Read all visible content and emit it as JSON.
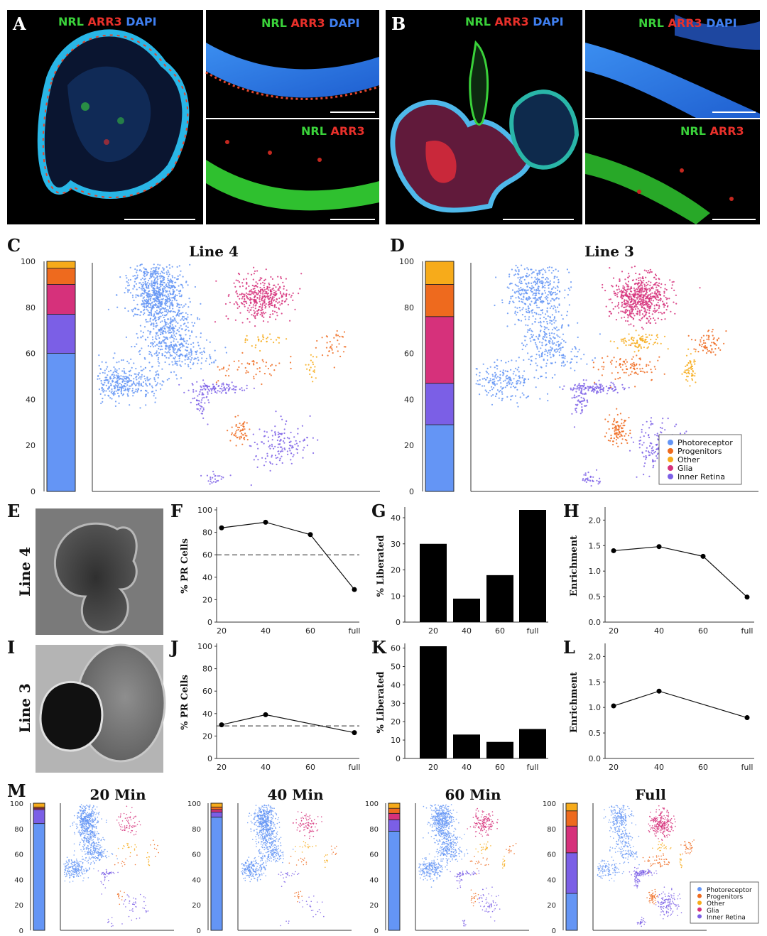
{
  "micrographs": {
    "A": {
      "letter": "A",
      "label_main": [
        "NRL",
        "ARR3",
        "DAPI"
      ],
      "label_inset_top": [
        "NRL",
        "ARR3",
        "DAPI"
      ],
      "label_inset_bottom": [
        "NRL",
        "ARR3"
      ]
    },
    "B": {
      "letter": "B",
      "label_main": [
        "NRL",
        "ARR3",
        "DAPI"
      ],
      "label_inset_top": [
        "NRL",
        "ARR3",
        "DAPI"
      ],
      "label_inset_bottom": [
        "NRL",
        "ARR3"
      ]
    },
    "label_colors": {
      "NRL": "#3ad23a",
      "ARR3": "#e8302a",
      "DAPI": "#3f7ff0"
    }
  },
  "brightfield": {
    "E": {
      "letter": "E",
      "line": "Line 4"
    },
    "I": {
      "letter": "I",
      "line": "Line 3"
    }
  },
  "legend_items": [
    "Photoreceptor",
    "Progenitors",
    "Other",
    "Glia",
    "Inner Retina"
  ],
  "category_colors": {
    "Photoreceptor": "#6495f5",
    "Progenitors": "#ee6a1e",
    "Other": "#f7ab1a",
    "Glia": "#d6317b",
    "Inner Retina": "#7b5fe6"
  },
  "chart_data": [
    {
      "panel": "C",
      "type": "bar",
      "title": "Line 4",
      "stacked": true,
      "ylim": [
        0,
        100
      ],
      "yticks": [
        0,
        20,
        40,
        60,
        80,
        100
      ],
      "series": [
        {
          "name": "Photoreceptor",
          "values": [
            60
          ]
        },
        {
          "name": "Inner Retina",
          "values": [
            17
          ]
        },
        {
          "name": "Glia",
          "values": [
            13
          ]
        },
        {
          "name": "Progenitors",
          "values": [
            7
          ]
        },
        {
          "name": "Other",
          "values": [
            3
          ]
        }
      ]
    },
    {
      "panel": "D",
      "type": "bar",
      "title": "Line 3",
      "stacked": true,
      "ylim": [
        0,
        100
      ],
      "yticks": [
        0,
        20,
        40,
        60,
        80,
        100
      ],
      "series": [
        {
          "name": "Photoreceptor",
          "values": [
            29
          ]
        },
        {
          "name": "Inner Retina",
          "values": [
            18
          ]
        },
        {
          "name": "Glia",
          "values": [
            29
          ]
        },
        {
          "name": "Progenitors",
          "values": [
            14
          ]
        },
        {
          "name": "Other",
          "values": [
            10
          ]
        }
      ]
    },
    {
      "panel": "F",
      "type": "line",
      "categories": [
        "20",
        "40",
        "60",
        "full"
      ],
      "values": [
        84,
        89,
        78,
        29
      ],
      "reference_line": 60,
      "ylabel": "% PR Cells",
      "ylim": [
        0,
        100
      ],
      "yticks": [
        0,
        20,
        40,
        60,
        80,
        100
      ]
    },
    {
      "panel": "G",
      "type": "bar",
      "categories": [
        "20",
        "40",
        "60",
        "full"
      ],
      "values": [
        30,
        9,
        18,
        43
      ],
      "ylabel": "% Liberated",
      "ylim": [
        0,
        43
      ],
      "yticks": [
        0,
        10,
        20,
        30,
        40
      ]
    },
    {
      "panel": "H",
      "type": "line",
      "categories": [
        "20",
        "40",
        "60",
        "full"
      ],
      "values": [
        1.4,
        1.48,
        1.29,
        0.49
      ],
      "ylabel": "Enrichment",
      "ylim": [
        0,
        2.2
      ],
      "yticks": [
        "0.0",
        "0.5",
        "1.0",
        "1.5",
        "2.0"
      ]
    },
    {
      "panel": "J",
      "type": "line",
      "categories": [
        "20",
        "40",
        "60",
        "full"
      ],
      "values": [
        30,
        39,
        null,
        23
      ],
      "reference_line": 29,
      "ylabel": "% PR Cells",
      "ylim": [
        0,
        100
      ],
      "yticks": [
        0,
        20,
        40,
        60,
        80,
        100
      ]
    },
    {
      "panel": "K",
      "type": "bar",
      "categories": [
        "20",
        "40",
        "60",
        "full"
      ],
      "values": [
        61,
        13,
        9,
        16
      ],
      "ylabel": "% Liberated",
      "ylim": [
        0,
        61
      ],
      "yticks": [
        0,
        10,
        20,
        30,
        40,
        50,
        60
      ]
    },
    {
      "panel": "L",
      "type": "line",
      "categories": [
        "20",
        "40",
        "60",
        "full"
      ],
      "values": [
        1.03,
        1.32,
        null,
        0.8
      ],
      "ylabel": "Enrichment",
      "ylim": [
        0,
        2.2
      ],
      "yticks": [
        "0.0",
        "0.5",
        "1.0",
        "1.5",
        "2.0"
      ]
    },
    {
      "panel": "M",
      "type": "bar",
      "stacked": true,
      "ylim": [
        0,
        100
      ],
      "yticks": [
        0,
        20,
        40,
        60,
        80,
        100
      ],
      "groups": [
        {
          "title": "20 Min",
          "series": [
            {
              "name": "Photoreceptor",
              "values": [
                84
              ]
            },
            {
              "name": "Inner Retina",
              "values": [
                11
              ]
            },
            {
              "name": "Glia",
              "values": [
                1
              ]
            },
            {
              "name": "Progenitors",
              "values": [
                1
              ]
            },
            {
              "name": "Other",
              "values": [
                3
              ]
            }
          ]
        },
        {
          "title": "40 Min",
          "series": [
            {
              "name": "Photoreceptor",
              "values": [
                89
              ]
            },
            {
              "name": "Inner Retina",
              "values": [
                4
              ]
            },
            {
              "name": "Glia",
              "values": [
                2
              ]
            },
            {
              "name": "Progenitors",
              "values": [
                2
              ]
            },
            {
              "name": "Other",
              "values": [
                3
              ]
            }
          ]
        },
        {
          "title": "60 Min",
          "series": [
            {
              "name": "Photoreceptor",
              "values": [
                78
              ]
            },
            {
              "name": "Inner Retina",
              "values": [
                9
              ]
            },
            {
              "name": "Glia",
              "values": [
                5
              ]
            },
            {
              "name": "Progenitors",
              "values": [
                4
              ]
            },
            {
              "name": "Other",
              "values": [
                4
              ]
            }
          ]
        },
        {
          "title": "Full",
          "series": [
            {
              "name": "Photoreceptor",
              "values": [
                29
              ]
            },
            {
              "name": "Inner Retina",
              "values": [
                32
              ]
            },
            {
              "name": "Glia",
              "values": [
                21
              ]
            },
            {
              "name": "Progenitors",
              "values": [
                12
              ]
            },
            {
              "name": "Other",
              "values": [
                6
              ]
            }
          ]
        }
      ]
    }
  ],
  "panel_letters": {
    "C": "C",
    "D": "D",
    "F": "F",
    "G": "G",
    "H": "H",
    "J": "J",
    "K": "K",
    "L": "L",
    "M": "M"
  }
}
